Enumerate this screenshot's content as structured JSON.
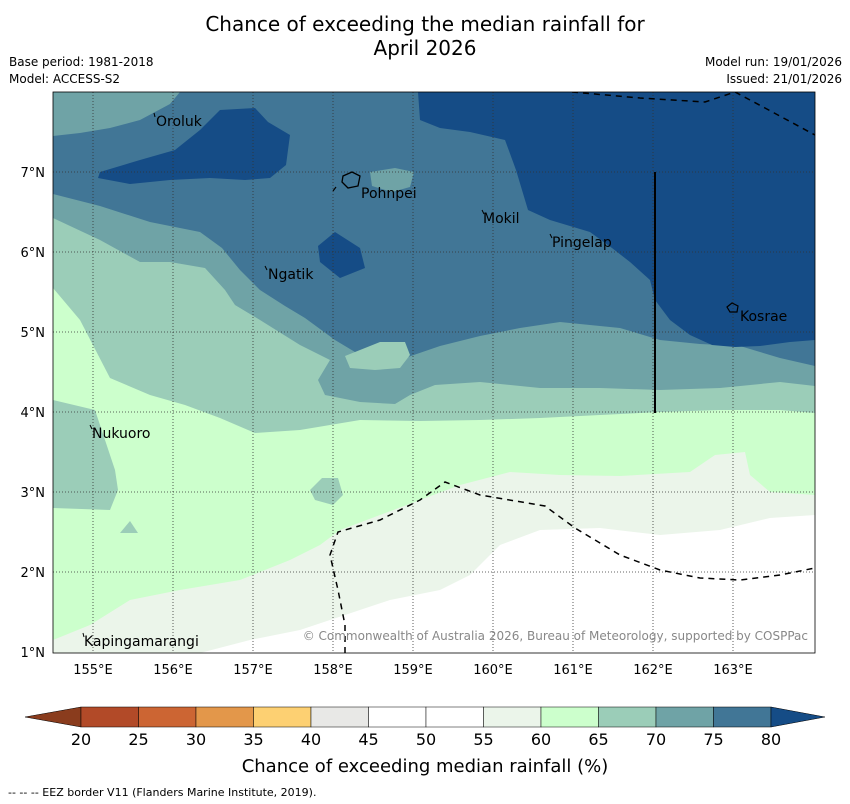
{
  "title_line1": "Chance of exceeding the median rainfall for",
  "title_line2": "April 2026",
  "meta_left": [
    "Base period: 1981-2018",
    "Model: ACCESS-S2"
  ],
  "meta_right": [
    "Model run: 19/01/2026",
    "Issued: 21/01/2026"
  ],
  "lat_labels": [
    "7°N",
    "6°N",
    "5°N",
    "4°N",
    "3°N",
    "2°N",
    "1°N"
  ],
  "lon_labels": [
    "155°E",
    "156°E",
    "157°E",
    "158°E",
    "159°E",
    "160°E",
    "161°E",
    "162°E",
    "163°E"
  ],
  "places": [
    {
      "name": "Oroluk"
    },
    {
      "name": "Pohnpei"
    },
    {
      "name": "Mokil"
    },
    {
      "name": "Pingelap"
    },
    {
      "name": "Ngatik"
    },
    {
      "name": "Kosrae"
    },
    {
      "name": "Nukuoro"
    },
    {
      "name": "Kapingamarangi"
    }
  ],
  "copyright": "© Commonwealth of Australia 2026, Bureau of Meteorology, supported by COSPPac",
  "colorbar": {
    "ticks": [
      "20",
      "25",
      "30",
      "35",
      "40",
      "45",
      "50",
      "55",
      "60",
      "65",
      "70",
      "75",
      "80"
    ],
    "colors": [
      "#b24a28",
      "#cc6533",
      "#e3974a",
      "#fdd072",
      "#e8e8e6",
      "#ffffff",
      "#ffffff",
      "#ebf5ea",
      "#ccffcc",
      "#9bcdb8",
      "#6fa3a6",
      "#417696",
      "#154c86"
    ],
    "over_color": "#154c86",
    "under_color": "#8a3c1d",
    "label": "Chance of exceeding median rainfall (%)"
  },
  "footer": "--  --  -- EEZ border V11 (Flanders Marine Institute, 2019)."
}
